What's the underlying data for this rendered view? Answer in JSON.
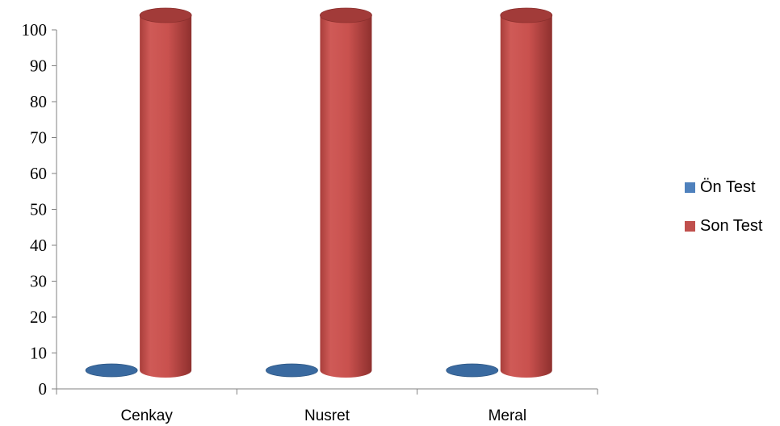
{
  "chart_data": {
    "type": "bar",
    "categories": [
      "Cenkay",
      "Nusret",
      "Meral"
    ],
    "series": [
      {
        "name": "Ön Test",
        "values": [
          0,
          0,
          0
        ],
        "color": "#4F81BD"
      },
      {
        "name": "Son Test",
        "values": [
          100,
          100,
          100
        ],
        "color": "#C0504D"
      }
    ],
    "yticks": [
      0,
      10,
      20,
      30,
      40,
      50,
      60,
      70,
      80,
      90,
      100
    ],
    "ylim": [
      0,
      100
    ],
    "grid": false,
    "legend_position": "right",
    "style": "3d-cylinder"
  }
}
